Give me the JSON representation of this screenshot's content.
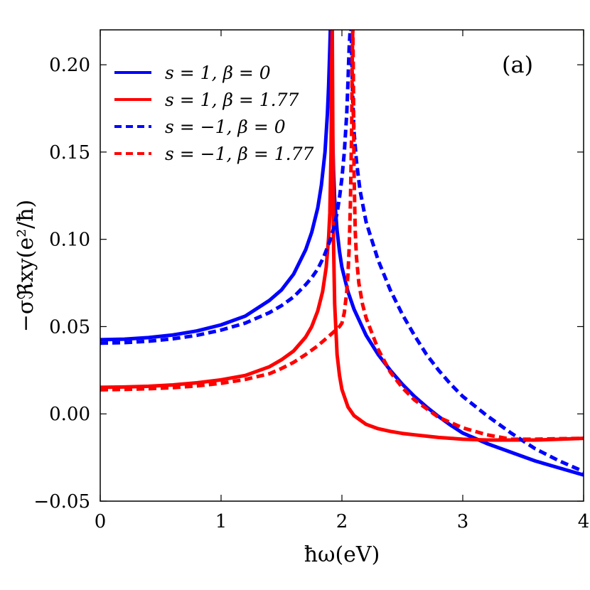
{
  "chart_data": {
    "type": "line",
    "panel_label": "(a)",
    "xlabel": "ħω(eV)",
    "ylabel": "−σℜxy(e²/ħ)",
    "xlim": [
      0,
      4
    ],
    "ylim": [
      -0.05,
      0.22
    ],
    "x_ticks": [
      0,
      1,
      2,
      3,
      4
    ],
    "x_tick_labels": [
      "0",
      "1",
      "2",
      "3",
      "4"
    ],
    "y_ticks": [
      -0.05,
      0.0,
      0.05,
      0.1,
      0.15,
      0.2
    ],
    "y_tick_labels": [
      "−0.05",
      "0.00",
      "0.05",
      "0.10",
      "0.15",
      "0.20"
    ],
    "legend_position": "top-left",
    "series": [
      {
        "name": "s = 1, β = 0",
        "color": "#0000ff",
        "style": "solid",
        "x": [
          0.0,
          0.2,
          0.4,
          0.6,
          0.8,
          1.0,
          1.2,
          1.4,
          1.5,
          1.6,
          1.7,
          1.75,
          1.8,
          1.83,
          1.86,
          1.88,
          1.89,
          1.9,
          1.905,
          1.91,
          1.915,
          1.92,
          1.93,
          1.94,
          1.96,
          1.98,
          2.0,
          2.05,
          2.1,
          2.2,
          2.3,
          2.4,
          2.5,
          2.6,
          2.7,
          2.8,
          2.9,
          3.0,
          3.2,
          3.4,
          3.6,
          3.8,
          4.0
        ],
        "y": [
          0.0425,
          0.0428,
          0.0437,
          0.0452,
          0.0475,
          0.051,
          0.056,
          0.065,
          0.071,
          0.08,
          0.094,
          0.104,
          0.118,
          0.131,
          0.15,
          0.172,
          0.188,
          0.21,
          0.222,
          0.222,
          0.2,
          0.17,
          0.14,
          0.123,
          0.105,
          0.093,
          0.084,
          0.07,
          0.06,
          0.045,
          0.034,
          0.025,
          0.017,
          0.01,
          0.004,
          -0.0015,
          -0.0065,
          -0.011,
          -0.017,
          -0.022,
          -0.027,
          -0.031,
          -0.035
        ]
      },
      {
        "name": "s = 1, β = 1.77",
        "color": "#ff0000",
        "style": "solid",
        "x": [
          0.0,
          0.2,
          0.4,
          0.6,
          0.8,
          1.0,
          1.2,
          1.4,
          1.5,
          1.6,
          1.7,
          1.75,
          1.8,
          1.84,
          1.87,
          1.89,
          1.9,
          1.91,
          1.915,
          1.92,
          1.925,
          1.93,
          1.94,
          1.96,
          1.98,
          2.0,
          2.05,
          2.1,
          2.2,
          2.3,
          2.4,
          2.5,
          2.6,
          2.8,
          3.0,
          3.2,
          3.4,
          3.6,
          3.8,
          4.0
        ],
        "y": [
          0.0152,
          0.0154,
          0.0158,
          0.0166,
          0.0178,
          0.0195,
          0.022,
          0.027,
          0.031,
          0.036,
          0.044,
          0.05,
          0.059,
          0.07,
          0.084,
          0.101,
          0.115,
          0.15,
          0.2,
          0.222,
          0.16,
          0.1,
          0.063,
          0.034,
          0.022,
          0.014,
          0.004,
          -0.001,
          -0.006,
          -0.0085,
          -0.01,
          -0.0112,
          -0.012,
          -0.0135,
          -0.0145,
          -0.015,
          -0.015,
          -0.015,
          -0.0145,
          -0.014
        ]
      },
      {
        "name": "s = −1, β = 0",
        "color": "#0000ff",
        "style": "dashed",
        "x": [
          0.0,
          0.2,
          0.4,
          0.6,
          0.8,
          1.0,
          1.2,
          1.4,
          1.5,
          1.6,
          1.7,
          1.75,
          1.8,
          1.85,
          1.9,
          1.93,
          1.96,
          1.98,
          2.0,
          2.02,
          2.04,
          2.05,
          2.06,
          2.07,
          2.075,
          2.08,
          2.085,
          2.09,
          2.1,
          2.12,
          2.15,
          2.2,
          2.3,
          2.4,
          2.5,
          2.6,
          2.7,
          2.8,
          2.9,
          3.0,
          3.2,
          3.4,
          3.6,
          3.8,
          4.0
        ],
        "y": [
          0.0405,
          0.0408,
          0.0416,
          0.043,
          0.045,
          0.048,
          0.052,
          0.058,
          0.062,
          0.067,
          0.074,
          0.078,
          0.083,
          0.09,
          0.099,
          0.106,
          0.115,
          0.124,
          0.135,
          0.15,
          0.172,
          0.19,
          0.21,
          0.222,
          0.222,
          0.21,
          0.195,
          0.18,
          0.162,
          0.145,
          0.128,
          0.11,
          0.088,
          0.071,
          0.057,
          0.045,
          0.034,
          0.025,
          0.017,
          0.01,
          -0.001,
          -0.011,
          -0.02,
          -0.027,
          -0.033
        ]
      },
      {
        "name": "s = −1, β = 1.77",
        "color": "#ff0000",
        "style": "dashed",
        "x": [
          0.0,
          0.2,
          0.4,
          0.6,
          0.8,
          1.0,
          1.2,
          1.4,
          1.5,
          1.6,
          1.7,
          1.8,
          1.85,
          1.9,
          1.95,
          1.98,
          2.0,
          2.02,
          2.04,
          2.05,
          2.06,
          2.07,
          2.08,
          2.085,
          2.09,
          2.095,
          2.1,
          2.11,
          2.12,
          2.14,
          2.17,
          2.2,
          2.3,
          2.4,
          2.5,
          2.6,
          2.8,
          3.0,
          3.2,
          3.4,
          3.6,
          3.8,
          4.0
        ],
        "y": [
          0.0138,
          0.014,
          0.0144,
          0.015,
          0.016,
          0.0175,
          0.0197,
          0.023,
          0.026,
          0.0295,
          0.034,
          0.039,
          0.042,
          0.045,
          0.048,
          0.05,
          0.052,
          0.058,
          0.07,
          0.08,
          0.095,
          0.12,
          0.16,
          0.2,
          0.222,
          0.19,
          0.14,
          0.105,
          0.09,
          0.075,
          0.063,
          0.055,
          0.037,
          0.024,
          0.015,
          0.008,
          -0.002,
          -0.008,
          -0.012,
          -0.0145,
          -0.0145,
          -0.0142,
          -0.014
        ]
      }
    ]
  }
}
